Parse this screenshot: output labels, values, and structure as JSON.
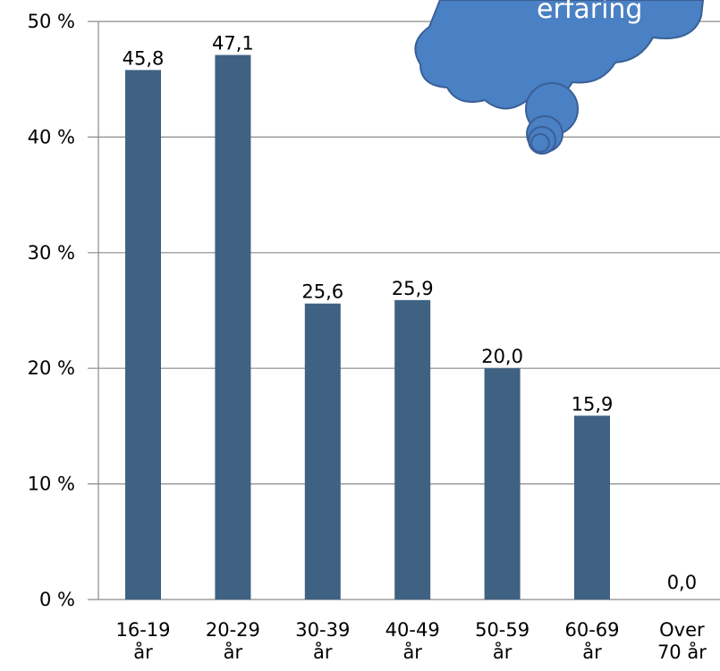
{
  "chart_data": {
    "type": "bar",
    "categories": [
      [
        "16-19",
        "år"
      ],
      [
        "20-29",
        "år"
      ],
      [
        "30-39",
        "år"
      ],
      [
        "40-49",
        "år"
      ],
      [
        "50-59",
        "år"
      ],
      [
        "60-69",
        "år"
      ],
      [
        "Over",
        "70 år"
      ]
    ],
    "values": [
      45.8,
      47.1,
      25.6,
      25.9,
      20.0,
      15.9,
      0.0
    ],
    "value_labels": [
      "45,8",
      "47,1",
      "25,6",
      "25,9",
      "20,0",
      "15,9",
      "0,0"
    ],
    "yticks": [
      "0 %",
      "10 %",
      "20 %",
      "30 %",
      "40 %",
      "50 %"
    ],
    "ylim": [
      0,
      50
    ],
    "grid": true,
    "bar_color": "#3f6283",
    "title": "",
    "xlabel": "",
    "ylabel": ""
  },
  "callout": {
    "text": "erfaring",
    "fill": "#4a80c4",
    "stroke": "#3a5f96"
  }
}
